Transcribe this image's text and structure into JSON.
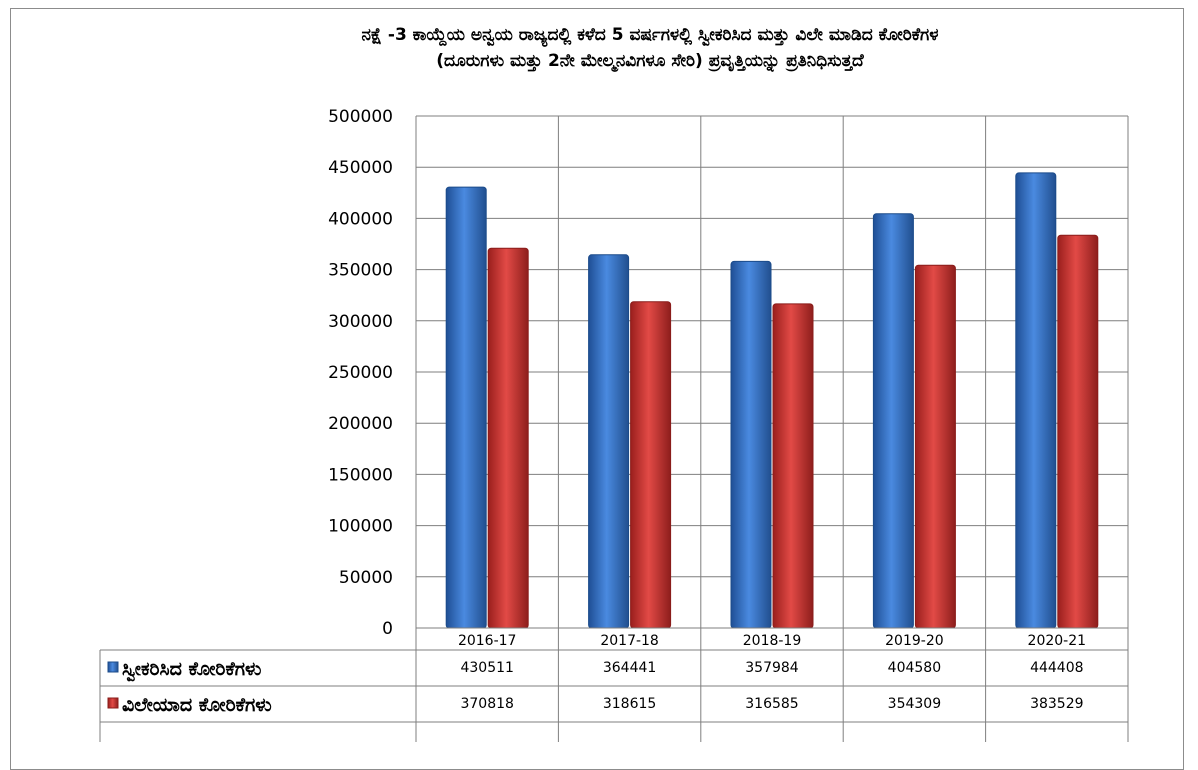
{
  "chart_data": {
    "type": "bar",
    "title_line1": "ನಕ್ಷೆ -3 ಕಾಯ್ದೆಯ ಅನ್ವಯ ರಾಜ್ಯದಲ್ಲಿ ಕಳೆದ 5 ವರ್ಷಗಳಲ್ಲಿ ಸ್ವೀಕರಿಸಿದ ಮತ್ತು ವಿಲೇ ಮಾಡಿದ ಕೋರಿಕೆಗಳ",
    "title_line2": "(ದೂರುಗಳು ಮತ್ತು 2ನೇ ಮೇಲ್ಮನವಿಗಳೂ ಸೇರಿ) ಪ್ರವೃತ್ತಿಯನ್ನು ಪ್ರತಿನಿಧಿಸುತ್ತದೆ",
    "categories": [
      "2016-17",
      "2017-18",
      "2018-19",
      "2019-20",
      "2020-21"
    ],
    "series": [
      {
        "name": "ಸ್ವೀಕರಿಸಿದ ಕೋರಿಕೆಗಳು",
        "color": "#2e6fc4",
        "values": [
          430511,
          364441,
          357984,
          404580,
          444408
        ]
      },
      {
        "name": "ವಿಲೇಯಾದ ಕೋರಿಕೆಗಳು",
        "color": "#c7302e",
        "values": [
          370818,
          318615,
          316585,
          354309,
          383529
        ]
      }
    ],
    "ylim": [
      0,
      500000
    ],
    "yticks": [
      0,
      50000,
      100000,
      150000,
      200000,
      250000,
      300000,
      350000,
      400000,
      450000,
      500000
    ],
    "grid": true,
    "legend": "data-table-below"
  }
}
